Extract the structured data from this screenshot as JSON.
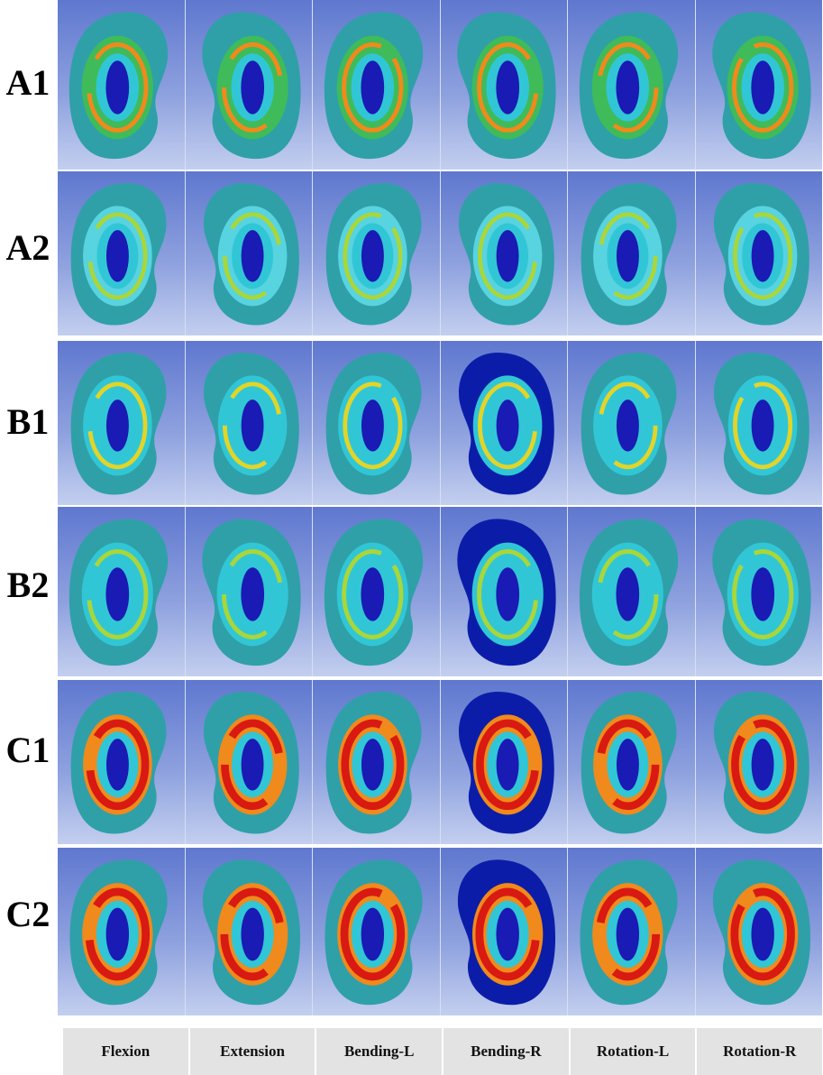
{
  "row_labels": [
    "A1",
    "A2",
    "B1",
    "B2",
    "C1",
    "C2"
  ],
  "column_labels": [
    "Flexion",
    "Extension",
    "Bending-L",
    "Bending-R",
    "Rotation-L",
    "Rotation-R"
  ],
  "colors": {
    "blue": "#1a1ab4",
    "darkBlue": "#0b1da8",
    "cyan": "#31c6d6",
    "teal": "#2fa0a8",
    "lightCyan": "#58d3e0",
    "green": "#3fbb5a",
    "yellowGreen": "#a9d63a",
    "yellow": "#e3d428",
    "orange": "#f08a1c",
    "red": "#d81a12",
    "background": "#7d93d8"
  }
}
